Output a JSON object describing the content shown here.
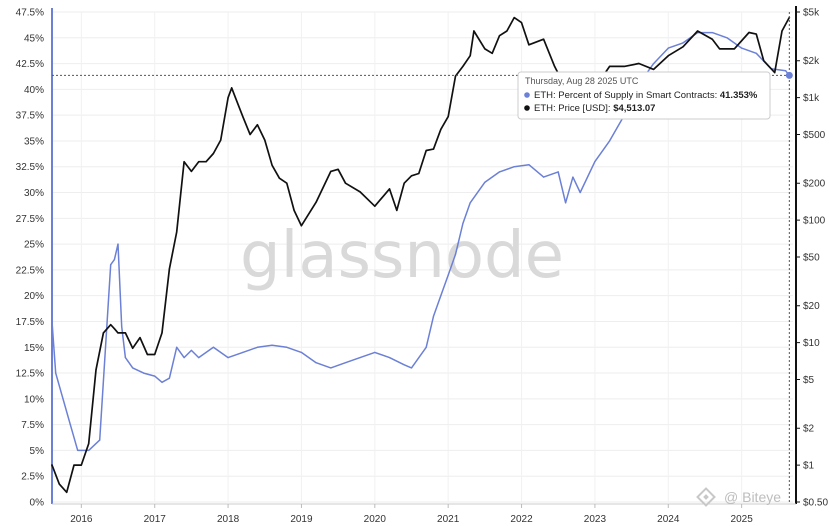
{
  "chart_data": {
    "type": "line",
    "title": "",
    "watermark": "glassnode",
    "x_ticks": [
      "2016",
      "2017",
      "2018",
      "2019",
      "2020",
      "2021",
      "2022",
      "2023",
      "2024",
      "2025"
    ],
    "y_left_ticks": [
      "0%",
      "2.5%",
      "5%",
      "7.5%",
      "10%",
      "12.5%",
      "15%",
      "17.5%",
      "20%",
      "22.5%",
      "25%",
      "27.5%",
      "30%",
      "32.5%",
      "35%",
      "37.5%",
      "40%",
      "42.5%",
      "45%",
      "47.5%"
    ],
    "y_right_ticks": [
      "$0.50",
      "$1",
      "$2",
      "$5",
      "$10",
      "$20",
      "$50",
      "$100",
      "$200",
      "$500",
      "$1k",
      "$2k",
      "$5k"
    ],
    "y_left_range": [
      0,
      47.5
    ],
    "y_right_range_log": [
      0.5,
      5000
    ],
    "x_range": [
      2015.6,
      2025.7
    ],
    "grid": true,
    "series": [
      {
        "name": "ETH: Percent of Supply in Smart Contracts",
        "axis": "left",
        "color": "#6b80d6",
        "x": [
          2015.6,
          2015.65,
          2015.75,
          2015.85,
          2015.95,
          2016.1,
          2016.25,
          2016.4,
          2016.45,
          2016.5,
          2016.55,
          2016.6,
          2016.7,
          2016.85,
          2017.0,
          2017.1,
          2017.2,
          2017.3,
          2017.4,
          2017.5,
          2017.6,
          2017.8,
          2018.0,
          2018.2,
          2018.4,
          2018.6,
          2018.8,
          2019.0,
          2019.2,
          2019.4,
          2019.6,
          2019.8,
          2020.0,
          2020.2,
          2020.4,
          2020.5,
          2020.7,
          2020.8,
          2020.9,
          2021.0,
          2021.1,
          2021.2,
          2021.3,
          2021.5,
          2021.7,
          2021.9,
          2022.1,
          2022.3,
          2022.5,
          2022.6,
          2022.7,
          2022.8,
          2023.0,
          2023.2,
          2023.4,
          2023.5,
          2023.6,
          2023.8,
          2024.0,
          2024.2,
          2024.4,
          2024.6,
          2024.8,
          2025.0,
          2025.2,
          2025.4,
          2025.6,
          2025.65
        ],
        "values": [
          17.5,
          12.5,
          10.0,
          7.5,
          5.0,
          5.0,
          6.0,
          23.0,
          23.5,
          25.0,
          17.0,
          14.0,
          13.0,
          12.5,
          12.2,
          11.6,
          12.0,
          15.0,
          14.0,
          14.7,
          14.0,
          15.0,
          14.0,
          14.5,
          15.0,
          15.2,
          15.0,
          14.5,
          13.5,
          13.0,
          13.5,
          14.0,
          14.5,
          14.0,
          13.3,
          13.0,
          15.0,
          18.0,
          20.0,
          22.0,
          24.0,
          27.0,
          29.0,
          31.0,
          32.0,
          32.5,
          32.7,
          31.5,
          32.0,
          29.0,
          31.5,
          30.0,
          33.0,
          35.0,
          37.5,
          38.5,
          40.5,
          42.5,
          44.0,
          44.5,
          45.5,
          45.5,
          45.0,
          44.0,
          43.5,
          42.0,
          41.8,
          41.353
        ]
      },
      {
        "name": "ETH: Price [USD]",
        "axis": "right",
        "color": "#111111",
        "x": [
          2015.6,
          2015.7,
          2015.8,
          2015.9,
          2016.0,
          2016.1,
          2016.2,
          2016.3,
          2016.4,
          2016.45,
          2016.5,
          2016.6,
          2016.7,
          2016.8,
          2016.9,
          2017.0,
          2017.1,
          2017.2,
          2017.3,
          2017.4,
          2017.5,
          2017.6,
          2017.7,
          2017.8,
          2017.9,
          2018.0,
          2018.05,
          2018.1,
          2018.2,
          2018.3,
          2018.4,
          2018.5,
          2018.6,
          2018.7,
          2018.8,
          2018.9,
          2019.0,
          2019.2,
          2019.4,
          2019.5,
          2019.6,
          2019.8,
          2020.0,
          2020.2,
          2020.3,
          2020.4,
          2020.5,
          2020.6,
          2020.7,
          2020.8,
          2020.9,
          2021.0,
          2021.1,
          2021.2,
          2021.3,
          2021.35,
          2021.5,
          2021.6,
          2021.7,
          2021.8,
          2021.9,
          2022.0,
          2022.1,
          2022.3,
          2022.45,
          2022.6,
          2022.7,
          2022.9,
          2023.0,
          2023.2,
          2023.4,
          2023.6,
          2023.8,
          2024.0,
          2024.2,
          2024.4,
          2024.6,
          2024.7,
          2024.9,
          2025.1,
          2025.2,
          2025.3,
          2025.45,
          2025.55,
          2025.65
        ],
        "values": [
          1.0,
          0.7,
          0.6,
          1.0,
          1.0,
          1.5,
          6.0,
          12.0,
          14.0,
          13.0,
          12.0,
          12.0,
          9.0,
          11.0,
          8.0,
          8.0,
          12.0,
          40.0,
          80.0,
          300.0,
          250.0,
          300.0,
          300.0,
          350.0,
          450.0,
          1000.0,
          1200.0,
          1000.0,
          700.0,
          500.0,
          600.0,
          450.0,
          280.0,
          220.0,
          200.0,
          120.0,
          90.0,
          140.0,
          250.0,
          260.0,
          200.0,
          170.0,
          130.0,
          180.0,
          120.0,
          200.0,
          230.0,
          240.0,
          370.0,
          380.0,
          550.0,
          700.0,
          1500.0,
          1800.0,
          2200.0,
          3500.0,
          2500.0,
          2300.0,
          3200.0,
          3500.0,
          4500.0,
          4100.0,
          2700.0,
          3000.0,
          1800.0,
          1200.0,
          1500.0,
          1200.0,
          1200.0,
          1800.0,
          1800.0,
          1900.0,
          1700.0,
          2200.0,
          2600.0,
          3500.0,
          3000.0,
          2500.0,
          2500.0,
          3400.0,
          3300.0,
          2000.0,
          1600.0,
          3500.0,
          4513.07
        ]
      }
    ],
    "tooltip": {
      "date": "Thursday, Aug 28 2025 UTC",
      "rows": [
        {
          "label": "ETH: Percent of Supply in Smart Contracts: ",
          "value": "41.353%",
          "color": "#6b80d6"
        },
        {
          "label": "ETH: Price [USD]: ",
          "value": "$4,513.07",
          "color": "#111111"
        }
      ]
    },
    "brand": "@ Biteye"
  }
}
